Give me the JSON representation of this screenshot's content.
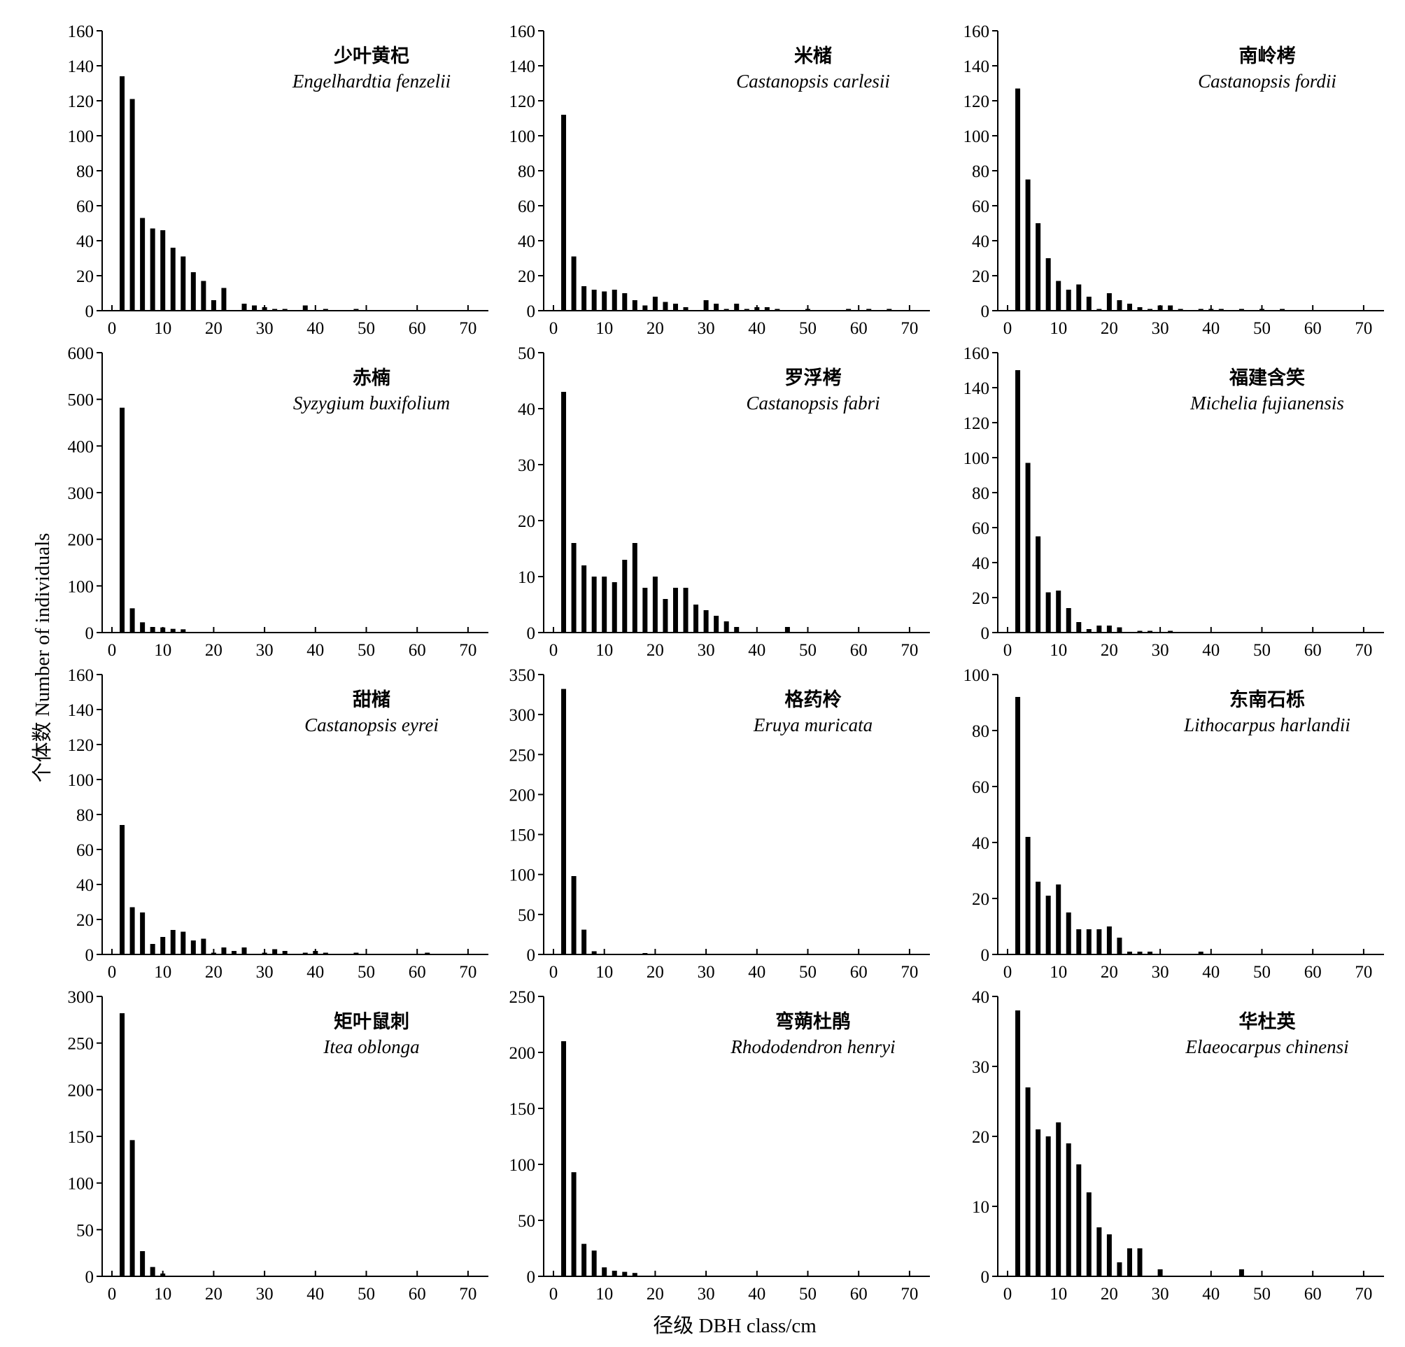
{
  "figure": {
    "ylabel": "个体数 Number of individuals",
    "xlabel": "径级 DBH class/cm"
  },
  "chart_data": [
    {
      "type": "bar",
      "title": "少叶黄杞",
      "subtitle": "Engelhardtia fenzelii",
      "xlim": [
        0,
        70
      ],
      "ylim": [
        0,
        160
      ],
      "yticks": [
        0,
        20,
        40,
        60,
        80,
        100,
        120,
        140,
        160
      ],
      "xticks": [
        0,
        10,
        20,
        30,
        40,
        50,
        60,
        70
      ],
      "x": [
        2,
        4,
        6,
        8,
        10,
        12,
        14,
        16,
        18,
        20,
        22,
        26,
        28,
        30,
        32,
        34,
        38,
        42,
        48
      ],
      "values": [
        134,
        121,
        53,
        47,
        46,
        36,
        31,
        22,
        17,
        6,
        13,
        4,
        3,
        2,
        1,
        1,
        3,
        1,
        1
      ]
    },
    {
      "type": "bar",
      "title": "米槠",
      "subtitle": "Castanopsis carlesii",
      "xlim": [
        0,
        70
      ],
      "ylim": [
        0,
        160
      ],
      "yticks": [
        0,
        20,
        40,
        60,
        80,
        100,
        120,
        140,
        160
      ],
      "xticks": [
        0,
        10,
        20,
        30,
        40,
        50,
        60,
        70
      ],
      "x": [
        2,
        4,
        6,
        8,
        10,
        12,
        14,
        16,
        18,
        20,
        22,
        24,
        26,
        30,
        32,
        34,
        36,
        38,
        40,
        42,
        44,
        50,
        58,
        62,
        66
      ],
      "values": [
        112,
        31,
        14,
        12,
        11,
        12,
        10,
        6,
        3,
        8,
        5,
        4,
        2,
        6,
        4,
        1,
        4,
        1,
        2,
        2,
        1,
        1,
        1,
        1,
        1
      ]
    },
    {
      "type": "bar",
      "title": "南岭栲",
      "subtitle": "Castanopsis fordii",
      "xlim": [
        0,
        70
      ],
      "ylim": [
        0,
        160
      ],
      "yticks": [
        0,
        20,
        40,
        60,
        80,
        100,
        120,
        140,
        160
      ],
      "xticks": [
        0,
        10,
        20,
        30,
        40,
        50,
        60,
        70
      ],
      "x": [
        2,
        4,
        6,
        8,
        10,
        12,
        14,
        16,
        18,
        20,
        22,
        24,
        26,
        28,
        30,
        32,
        34,
        38,
        40,
        42,
        46,
        50,
        54
      ],
      "values": [
        127,
        75,
        50,
        30,
        17,
        12,
        15,
        8,
        1,
        10,
        6,
        4,
        2,
        1,
        3,
        3,
        1,
        1,
        1,
        1,
        1,
        1,
        1
      ]
    },
    {
      "type": "bar",
      "title": "赤楠",
      "subtitle": "Syzygium buxifolium",
      "xlim": [
        0,
        70
      ],
      "ylim": [
        0,
        600
      ],
      "yticks": [
        0,
        100,
        200,
        300,
        400,
        500,
        600
      ],
      "xticks": [
        0,
        10,
        20,
        30,
        40,
        50,
        60,
        70
      ],
      "x": [
        2,
        4,
        6,
        8,
        10,
        12,
        14
      ],
      "values": [
        482,
        52,
        22,
        12,
        11,
        8,
        7
      ]
    },
    {
      "type": "bar",
      "title": "罗浮栲",
      "subtitle": "Castanopsis fabri",
      "xlim": [
        0,
        70
      ],
      "ylim": [
        0,
        50
      ],
      "yticks": [
        0,
        10,
        20,
        30,
        40,
        50
      ],
      "xticks": [
        0,
        10,
        20,
        30,
        40,
        50,
        60,
        70
      ],
      "x": [
        2,
        4,
        6,
        8,
        10,
        12,
        14,
        16,
        18,
        20,
        22,
        24,
        26,
        28,
        30,
        32,
        34,
        36,
        46
      ],
      "values": [
        43,
        16,
        12,
        10,
        10,
        9,
        13,
        16,
        8,
        10,
        6,
        8,
        8,
        5,
        4,
        3,
        2,
        1,
        1
      ]
    },
    {
      "type": "bar",
      "title": "福建含笑",
      "subtitle": "Michelia fujianensis",
      "xlim": [
        0,
        70
      ],
      "ylim": [
        0,
        160
      ],
      "yticks": [
        0,
        20,
        40,
        60,
        80,
        100,
        120,
        140,
        160
      ],
      "xticks": [
        0,
        10,
        20,
        30,
        40,
        50,
        60,
        70
      ],
      "x": [
        2,
        4,
        6,
        8,
        10,
        12,
        14,
        16,
        18,
        20,
        22,
        26,
        28,
        32
      ],
      "values": [
        150,
        97,
        55,
        23,
        24,
        14,
        6,
        2,
        4,
        4,
        3,
        1,
        1,
        1
      ]
    },
    {
      "type": "bar",
      "title": "甜槠",
      "subtitle": "Castanopsis eyrei",
      "xlim": [
        0,
        70
      ],
      "ylim": [
        0,
        160
      ],
      "yticks": [
        0,
        20,
        40,
        60,
        80,
        100,
        120,
        140,
        160
      ],
      "xticks": [
        0,
        10,
        20,
        30,
        40,
        50,
        60,
        70
      ],
      "x": [
        2,
        4,
        6,
        8,
        10,
        12,
        14,
        16,
        18,
        20,
        22,
        24,
        26,
        30,
        32,
        34,
        38,
        40,
        42,
        48,
        62
      ],
      "values": [
        74,
        27,
        24,
        6,
        10,
        14,
        13,
        8,
        9,
        1,
        4,
        2,
        4,
        1,
        3,
        2,
        1,
        2,
        1,
        1,
        1
      ]
    },
    {
      "type": "bar",
      "title": "格药柃",
      "subtitle": "Eruya muricata",
      "xlim": [
        0,
        70
      ],
      "ylim": [
        0,
        350
      ],
      "yticks": [
        0,
        50,
        100,
        150,
        200,
        250,
        300,
        350
      ],
      "xticks": [
        0,
        10,
        20,
        30,
        40,
        50,
        60,
        70
      ],
      "x": [
        2,
        4,
        6,
        8,
        18
      ],
      "values": [
        332,
        98,
        31,
        4,
        1
      ]
    },
    {
      "type": "bar",
      "title": "东南石栎",
      "subtitle": "Lithocarpus harlandii",
      "xlim": [
        0,
        70
      ],
      "ylim": [
        0,
        100
      ],
      "yticks": [
        0,
        20,
        40,
        60,
        80,
        100
      ],
      "xticks": [
        0,
        10,
        20,
        30,
        40,
        50,
        60,
        70
      ],
      "x": [
        2,
        4,
        6,
        8,
        10,
        12,
        14,
        16,
        18,
        20,
        22,
        24,
        26,
        28,
        38
      ],
      "values": [
        92,
        42,
        26,
        21,
        25,
        15,
        9,
        9,
        9,
        10,
        6,
        1,
        1,
        1,
        1
      ]
    },
    {
      "type": "bar",
      "title": "矩叶鼠刺",
      "subtitle": "Itea oblonga",
      "xlim": [
        0,
        70
      ],
      "ylim": [
        0,
        300
      ],
      "yticks": [
        0,
        50,
        100,
        150,
        200,
        250,
        300
      ],
      "xticks": [
        0,
        10,
        20,
        30,
        40,
        50,
        60,
        70
      ],
      "x": [
        2,
        4,
        6,
        8,
        10
      ],
      "values": [
        282,
        146,
        27,
        10,
        3
      ]
    },
    {
      "type": "bar",
      "title": "弯蒴杜鹃",
      "subtitle": "Rhododendron henryi",
      "xlim": [
        0,
        70
      ],
      "ylim": [
        0,
        250
      ],
      "yticks": [
        0,
        50,
        100,
        150,
        200,
        250
      ],
      "xticks": [
        0,
        10,
        20,
        30,
        40,
        50,
        60,
        70
      ],
      "x": [
        2,
        4,
        6,
        8,
        10,
        12,
        14,
        16
      ],
      "values": [
        210,
        93,
        29,
        23,
        8,
        5,
        4,
        3
      ]
    },
    {
      "type": "bar",
      "title": "华杜英",
      "subtitle": "Elaeocarpus chinensi",
      "xlim": [
        0,
        70
      ],
      "ylim": [
        0,
        40
      ],
      "yticks": [
        0,
        10,
        20,
        30,
        40
      ],
      "xticks": [
        0,
        10,
        20,
        30,
        40,
        50,
        60,
        70
      ],
      "x": [
        2,
        4,
        6,
        8,
        10,
        12,
        14,
        16,
        18,
        20,
        22,
        24,
        26,
        30,
        46
      ],
      "values": [
        38,
        27,
        21,
        20,
        22,
        19,
        16,
        12,
        7,
        6,
        2,
        4,
        4,
        1,
        1
      ]
    }
  ]
}
